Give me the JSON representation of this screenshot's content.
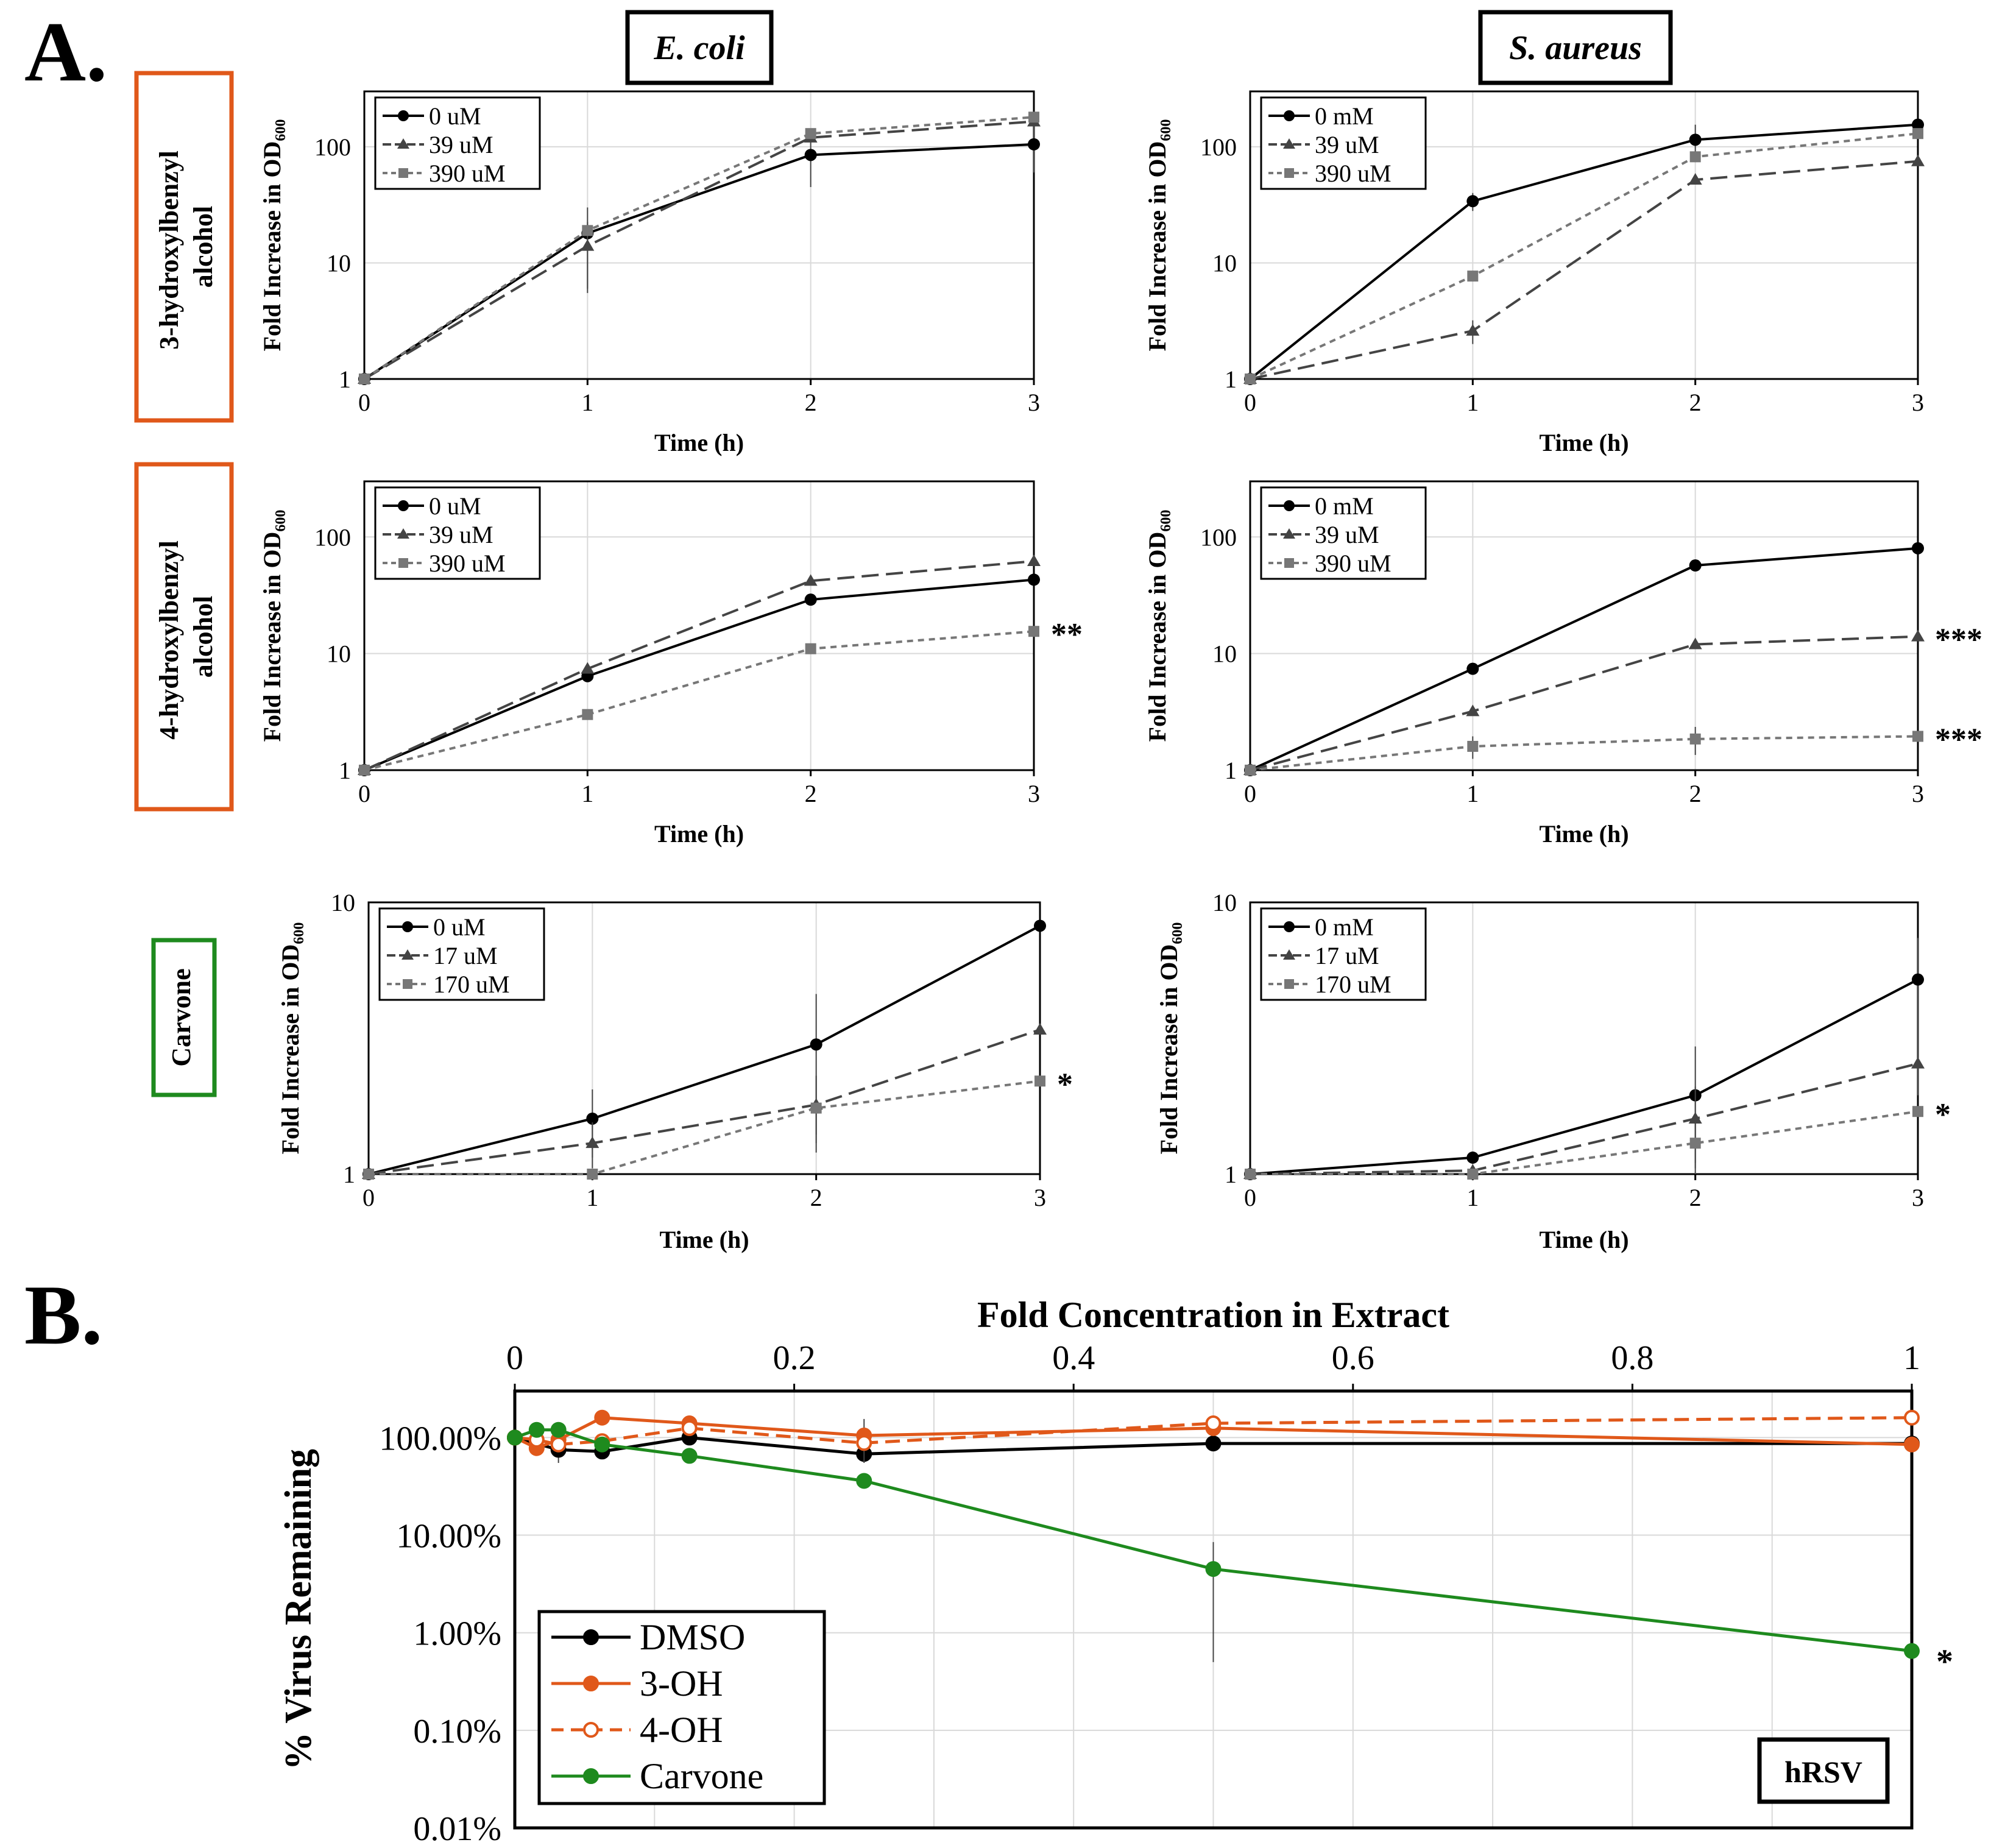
{
  "panel_letters": {
    "a": "A.",
    "b": "B."
  },
  "column_headers": {
    "left": "E. coli",
    "right": "S. aureus"
  },
  "row_labels": {
    "r1": [
      "3-hydroxylbenzyl",
      "alcohol"
    ],
    "r2": [
      "4-hydroxylbenzyl",
      "alcohol"
    ],
    "r3": [
      "Carvone"
    ]
  },
  "colors": {
    "orange": "#e0581a",
    "green": "#1e8a1e",
    "black": "#000000",
    "gray_dark": "#444444",
    "gray_light": "#777777",
    "grid": "#d9d9d9"
  },
  "chart_data": [
    {
      "id": "c11",
      "type": "line",
      "organism": "E. coli",
      "compound": "3-hydroxylbenzyl alcohol",
      "xlabel": "Time (h)",
      "ylabel_main": "Fold Increase in OD",
      "ylabel_sub": "600",
      "yscale": "log",
      "ylim": [
        1,
        300
      ],
      "yticks": [
        1,
        10,
        100
      ],
      "yticklabels": [
        "1",
        "10",
        "100"
      ],
      "x": [
        0,
        1,
        2,
        3
      ],
      "xticklabels": [
        "0",
        "1",
        "2",
        "3"
      ],
      "series": [
        {
          "name": "0 uM",
          "style": "solid",
          "marker": "circle",
          "values": [
            1,
            18,
            85,
            105
          ],
          "err": [
            0,
            12,
            40,
            45
          ]
        },
        {
          "name": "39 uM",
          "style": "dash",
          "marker": "triangle",
          "values": [
            1,
            14,
            120,
            165
          ],
          "err": [
            0,
            8.5,
            0,
            0
          ]
        },
        {
          "name": "390 uM",
          "style": "dot",
          "marker": "square",
          "values": [
            1,
            19,
            130,
            180
          ],
          "err": [
            0,
            0,
            0,
            0
          ]
        }
      ],
      "annotation": ""
    },
    {
      "id": "c12",
      "type": "line",
      "organism": "S. aureus",
      "compound": "3-hydroxylbenzyl alcohol",
      "xlabel": "Time (h)",
      "ylabel_main": "Fold Increase in OD",
      "ylabel_sub": "600",
      "yscale": "log",
      "ylim": [
        1,
        300
      ],
      "yticks": [
        1,
        10,
        100
      ],
      "yticklabels": [
        "1",
        "10",
        "100"
      ],
      "x": [
        0,
        1,
        2,
        3
      ],
      "xticklabels": [
        "0",
        "1",
        "2",
        "3"
      ],
      "series": [
        {
          "name": "0 mM",
          "style": "solid",
          "marker": "circle",
          "values": [
            1,
            34,
            115,
            155
          ],
          "err": [
            0,
            6,
            40,
            0
          ]
        },
        {
          "name": "39 uM",
          "style": "dash",
          "marker": "triangle",
          "values": [
            1,
            2.6,
            52,
            75
          ],
          "err": [
            0,
            0.6,
            0,
            0
          ]
        },
        {
          "name": "390 uM",
          "style": "dot",
          "marker": "square",
          "values": [
            1,
            7.7,
            82,
            130
          ],
          "err": [
            0,
            0,
            0,
            0
          ]
        }
      ],
      "annotation": ""
    },
    {
      "id": "c21",
      "type": "line",
      "organism": "E. coli",
      "compound": "4-hydroxylbenzyl alcohol",
      "xlabel": "Time (h)",
      "ylabel_main": "Fold Increase in OD",
      "ylabel_sub": "600",
      "yscale": "log",
      "ylim": [
        1,
        300
      ],
      "yticks": [
        1,
        10,
        100
      ],
      "yticklabels": [
        "1",
        "10",
        "100"
      ],
      "x": [
        0,
        1,
        2,
        3
      ],
      "xticklabels": [
        "0",
        "1",
        "2",
        "3"
      ],
      "series": [
        {
          "name": "0 uM",
          "style": "solid",
          "marker": "circle",
          "values": [
            1,
            6.4,
            29,
            43
          ],
          "err": [
            0,
            0,
            0,
            0
          ]
        },
        {
          "name": "39 uM",
          "style": "dash",
          "marker": "triangle",
          "values": [
            1,
            7.4,
            42,
            62
          ],
          "err": [
            0,
            0,
            0,
            0
          ]
        },
        {
          "name": "390 uM",
          "style": "dot",
          "marker": "square",
          "values": [
            1,
            3,
            11,
            15.5
          ],
          "err": [
            0,
            0,
            0,
            0
          ]
        }
      ],
      "annotation": "**"
    },
    {
      "id": "c22",
      "type": "line",
      "organism": "S. aureus",
      "compound": "4-hydroxylbenzyl alcohol",
      "xlabel": "Time (h)",
      "ylabel_main": "Fold Increase in OD",
      "ylabel_sub": "600",
      "yscale": "log",
      "ylim": [
        1,
        300
      ],
      "yticks": [
        1,
        10,
        100
      ],
      "yticklabels": [
        "1",
        "10",
        "100"
      ],
      "x": [
        0,
        1,
        2,
        3
      ],
      "xticklabels": [
        "0",
        "1",
        "2",
        "3"
      ],
      "series": [
        {
          "name": "0 mM",
          "style": "solid",
          "marker": "circle",
          "values": [
            1,
            7.4,
            57,
            80
          ],
          "err": [
            0,
            0,
            0,
            0
          ]
        },
        {
          "name": "39 uM",
          "style": "dash",
          "marker": "triangle",
          "values": [
            1,
            3.2,
            12,
            14
          ],
          "err": [
            0,
            0,
            0,
            0
          ]
        },
        {
          "name": "390 uM",
          "style": "dot",
          "marker": "square",
          "values": [
            1,
            1.6,
            1.85,
            1.95
          ],
          "err": [
            0,
            0.35,
            0.5,
            0
          ]
        }
      ],
      "annotations": [
        "***",
        "***"
      ]
    },
    {
      "id": "c31",
      "type": "line",
      "organism": "E. coli",
      "compound": "Carvone",
      "xlabel": "Time (h)",
      "ylabel_main": "Fold Increase in OD",
      "ylabel_sub": "600",
      "yscale": "log",
      "ylim": [
        1,
        10
      ],
      "yticks": [
        1,
        10
      ],
      "yticklabels": [
        "1",
        "10"
      ],
      "x": [
        0,
        1,
        2,
        3
      ],
      "xticklabels": [
        "0",
        "1",
        "2",
        "3"
      ],
      "series": [
        {
          "name": "0 uM",
          "style": "solid",
          "marker": "circle",
          "values": [
            1,
            1.6,
            3,
            8.2
          ],
          "err": [
            0,
            0.45,
            1.6,
            0
          ]
        },
        {
          "name": "17 uM",
          "style": "dash",
          "marker": "triangle",
          "values": [
            1,
            1.3,
            1.8,
            3.4
          ],
          "err": [
            0,
            0.25,
            0.5,
            0
          ]
        },
        {
          "name": "170 uM",
          "style": "dot",
          "marker": "square",
          "values": [
            1,
            1,
            1.75,
            2.2
          ],
          "err": [
            0,
            0,
            0.55,
            0
          ]
        }
      ],
      "annotation": "*"
    },
    {
      "id": "c32",
      "type": "line",
      "organism": "S. aureus",
      "compound": "Carvone",
      "xlabel": "Time (h)",
      "ylabel_main": "Fold Increase in OD",
      "ylabel_sub": "600",
      "yscale": "log",
      "ylim": [
        1,
        10
      ],
      "yticks": [
        1,
        10
      ],
      "yticklabels": [
        "1",
        "10"
      ],
      "x": [
        0,
        1,
        2,
        3
      ],
      "xticklabels": [
        "0",
        "1",
        "2",
        "3"
      ],
      "series": [
        {
          "name": "0 mM",
          "style": "solid",
          "marker": "circle",
          "values": [
            1,
            1.15,
            1.95,
            5.2
          ],
          "err": [
            0,
            0.06,
            1.0,
            2.2
          ]
        },
        {
          "name": "17 uM",
          "style": "dash",
          "marker": "triangle",
          "values": [
            1,
            1.03,
            1.6,
            2.55
          ],
          "err": [
            0,
            0,
            0.5,
            0.6
          ]
        },
        {
          "name": "170 uM",
          "style": "dot",
          "marker": "square",
          "values": [
            1,
            1,
            1.3,
            1.7
          ],
          "err": [
            0,
            0,
            0.25,
            0
          ]
        }
      ],
      "annotation": "*"
    },
    {
      "id": "b",
      "type": "line",
      "badge": "hRSV",
      "xlabel": "Fold Concentration in Extract",
      "ylabel": "% Virus Remaining",
      "yscale": "log",
      "ylim": [
        0.0001,
        3.0
      ],
      "yticks": [
        0.0001,
        0.001,
        0.01,
        0.1,
        1
      ],
      "yticklabels": [
        "0.01%",
        "0.10%",
        "1.00%",
        "10.00%",
        "100.00%"
      ],
      "xlim": [
        0,
        1
      ],
      "xticks": [
        0,
        0.2,
        0.4,
        0.6,
        0.8,
        1
      ],
      "xticklabels": [
        "0",
        "0.2",
        "0.4",
        "0.6",
        "0.8",
        "1"
      ],
      "series": [
        {
          "name": "DMSO",
          "x": [
            0,
            0.03125,
            0.0625,
            0.125,
            0.25,
            0.5,
            1
          ],
          "values": [
            1.0,
            0.75,
            0.72,
            1.0,
            0.68,
            0.87,
            0.87
          ],
          "err": [
            0,
            0.2,
            0,
            0,
            0.12,
            0,
            0
          ]
        },
        {
          "name": "3-OH",
          "x": [
            0,
            0.015625,
            0.03125,
            0.0625,
            0.125,
            0.25,
            0.5,
            1
          ],
          "values": [
            1.0,
            0.78,
            0.95,
            1.6,
            1.4,
            1.05,
            1.25,
            0.85
          ],
          "err": [
            0,
            0,
            0,
            0,
            0,
            0.5,
            0,
            0
          ]
        },
        {
          "name": "4-OH",
          "x": [
            0,
            0.015625,
            0.03125,
            0.0625,
            0.125,
            0.25,
            0.5,
            1
          ],
          "values": [
            1.0,
            0.95,
            0.85,
            0.92,
            1.25,
            0.88,
            1.4,
            1.6
          ],
          "err": [
            0,
            0,
            0,
            0,
            0,
            0,
            0,
            0
          ]
        },
        {
          "name": "Carvone",
          "x": [
            0,
            0.015625,
            0.03125,
            0.0625,
            0.125,
            0.25,
            0.5,
            1
          ],
          "values": [
            1.0,
            1.2,
            1.2,
            0.85,
            0.65,
            0.36,
            0.045,
            0.0065
          ],
          "err": [
            0,
            0,
            0,
            0,
            0,
            0,
            0.04,
            0
          ]
        }
      ],
      "annotation": "*"
    }
  ]
}
